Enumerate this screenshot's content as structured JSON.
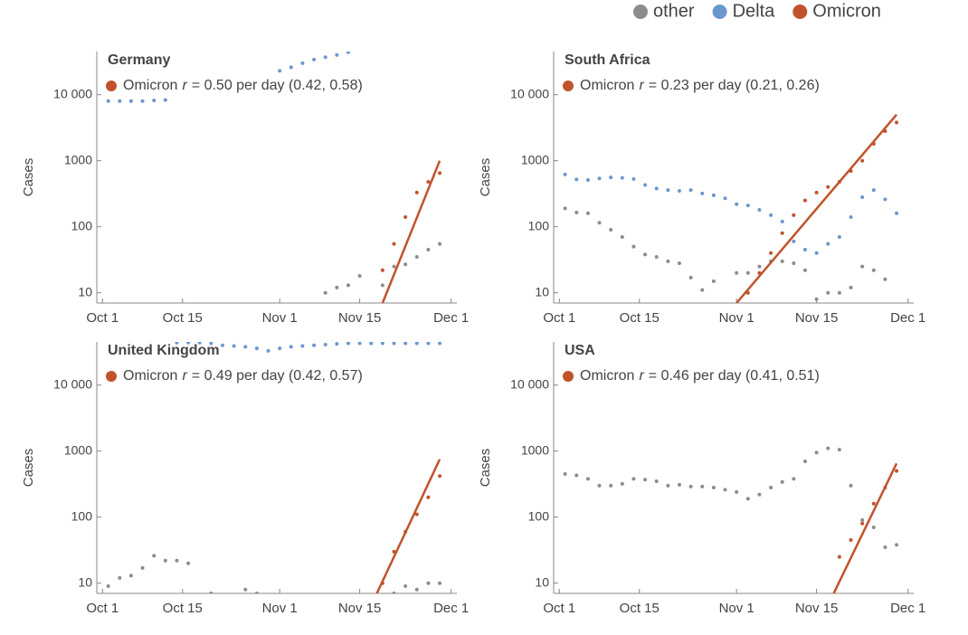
{
  "chart_data": [
    {
      "type": "scatter",
      "title": "Germany",
      "ylabel": "Cases",
      "log_y": true,
      "legend": "top right",
      "annotation": {
        "label": "Omicron",
        "symbol": "r",
        "text": "= 0.50 per day (0.42, 0.58)"
      },
      "x": [
        "Oct 2",
        "Oct 4",
        "Oct 6",
        "Oct 8",
        "Oct 10",
        "Oct 12",
        "Oct 14",
        "Oct 16",
        "Oct 18",
        "Oct 20",
        "Oct 22",
        "Oct 24",
        "Oct 26",
        "Oct 28",
        "Oct 30",
        "Nov 1",
        "Nov 3",
        "Nov 5",
        "Nov 7",
        "Nov 9",
        "Nov 11",
        "Nov 13",
        "Nov 15",
        "Nov 17",
        "Nov 19",
        "Nov 21",
        "Nov 23",
        "Nov 25",
        "Nov 27",
        "Nov 29"
      ],
      "series": [
        {
          "name": "other",
          "color": "#8c8c8c",
          "values": [
            null,
            null,
            null,
            null,
            null,
            null,
            null,
            null,
            null,
            null,
            null,
            null,
            null,
            null,
            null,
            null,
            null,
            null,
            null,
            10,
            12,
            13,
            18,
            null,
            13,
            25,
            27,
            35,
            45,
            55
          ]
        },
        {
          "name": "Delta",
          "color": "#6b97cf",
          "values": [
            8000,
            8000,
            8000,
            8000,
            8200,
            8300,
            null,
            null,
            null,
            null,
            null,
            null,
            null,
            null,
            null,
            23000,
            26000,
            30000,
            34000,
            37000,
            40000,
            44000,
            null,
            null,
            null,
            null,
            null,
            null,
            null,
            null
          ]
        },
        {
          "name": "Omicron",
          "color": "#c0532b",
          "values": [
            null,
            null,
            null,
            null,
            null,
            null,
            null,
            null,
            null,
            null,
            null,
            null,
            null,
            null,
            null,
            null,
            null,
            null,
            null,
            null,
            null,
            null,
            null,
            null,
            22,
            55,
            140,
            330,
            480,
            650
          ]
        }
      ],
      "fit": {
        "x": [
          "Nov 19",
          "Nov 29"
        ],
        "values": [
          7,
          1000
        ]
      },
      "xlim": [
        "Sep 30",
        "Dec 2"
      ],
      "xticks": [
        "Oct 1",
        "Oct 15",
        "Nov 1",
        "Nov 15",
        "Dec 1"
      ],
      "ylim": [
        7,
        45000
      ],
      "yticks": [
        10,
        100,
        1000,
        {
          "value": 10000,
          "label": "10 000"
        }
      ]
    },
    {
      "type": "scatter",
      "title": "South Africa",
      "ylabel": "Cases",
      "log_y": true,
      "annotation": {
        "label": "Omicron",
        "symbol": "r",
        "text": "= 0.23 per day (0.21, 0.26)"
      },
      "x": [
        "Oct 2",
        "Oct 4",
        "Oct 6",
        "Oct 8",
        "Oct 10",
        "Oct 12",
        "Oct 14",
        "Oct 16",
        "Oct 18",
        "Oct 20",
        "Oct 22",
        "Oct 24",
        "Oct 26",
        "Oct 28",
        "Oct 30",
        "Nov 1",
        "Nov 3",
        "Nov 5",
        "Nov 7",
        "Nov 9",
        "Nov 11",
        "Nov 13",
        "Nov 15",
        "Nov 17",
        "Nov 19",
        "Nov 21",
        "Nov 23",
        "Nov 25",
        "Nov 27",
        "Nov 29"
      ],
      "series": [
        {
          "name": "other",
          "color": "#8c8c8c",
          "values": [
            190,
            165,
            160,
            115,
            90,
            70,
            50,
            38,
            35,
            30,
            28,
            17,
            11,
            15,
            null,
            20,
            20,
            25,
            30,
            30,
            28,
            22,
            8,
            10,
            10,
            12,
            25,
            22,
            16,
            null
          ]
        },
        {
          "name": "Delta",
          "color": "#6b97cf",
          "values": [
            620,
            520,
            510,
            540,
            560,
            550,
            530,
            430,
            380,
            360,
            350,
            360,
            320,
            300,
            270,
            220,
            210,
            180,
            150,
            120,
            60,
            45,
            40,
            55,
            70,
            140,
            280,
            360,
            260,
            160
          ]
        },
        {
          "name": "Omicron",
          "color": "#c0532b",
          "values": [
            null,
            null,
            null,
            null,
            null,
            null,
            null,
            null,
            null,
            null,
            null,
            null,
            null,
            null,
            null,
            null,
            10,
            20,
            40,
            80,
            150,
            250,
            330,
            400,
            480,
            700,
            1000,
            1800,
            2800,
            3800
          ]
        }
      ],
      "fit": {
        "x": [
          "Nov 1",
          "Nov 29"
        ],
        "values": [
          7,
          5000
        ]
      },
      "xlim": [
        "Sep 30",
        "Dec 2"
      ],
      "xticks": [
        "Oct 1",
        "Oct 15",
        "Nov 1",
        "Nov 15",
        "Dec 1"
      ],
      "ylim": [
        7,
        45000
      ],
      "yticks": [
        10,
        100,
        1000,
        {
          "value": 10000,
          "label": "10 000"
        }
      ]
    },
    {
      "type": "scatter",
      "title": "United Kingdom",
      "ylabel": "Cases",
      "log_y": true,
      "annotation": {
        "label": "Omicron",
        "symbol": "r",
        "text": "= 0.49 per day (0.42, 0.57)"
      },
      "x": [
        "Oct 2",
        "Oct 4",
        "Oct 6",
        "Oct 8",
        "Oct 10",
        "Oct 12",
        "Oct 14",
        "Oct 16",
        "Oct 18",
        "Oct 20",
        "Oct 22",
        "Oct 24",
        "Oct 26",
        "Oct 28",
        "Oct 30",
        "Nov 1",
        "Nov 3",
        "Nov 5",
        "Nov 7",
        "Nov 9",
        "Nov 11",
        "Nov 13",
        "Nov 15",
        "Nov 17",
        "Nov 19",
        "Nov 21",
        "Nov 23",
        "Nov 25",
        "Nov 27",
        "Nov 29"
      ],
      "series": [
        {
          "name": "other",
          "color": "#8c8c8c",
          "values": [
            9,
            12,
            13,
            17,
            26,
            22,
            22,
            20,
            null,
            7,
            null,
            null,
            8,
            7,
            null,
            null,
            null,
            null,
            null,
            null,
            null,
            null,
            null,
            null,
            null,
            7,
            9,
            8,
            10,
            10
          ]
        },
        {
          "name": "Delta",
          "color": "#6b97cf",
          "values": [
            null,
            null,
            null,
            null,
            null,
            null,
            44000,
            44000,
            44000,
            43000,
            40000,
            39000,
            38000,
            36000,
            33000,
            36000,
            38000,
            39000,
            40000,
            41000,
            42000,
            43000,
            43000,
            43000,
            43000,
            43000,
            43000,
            43000,
            43000,
            43000
          ]
        },
        {
          "name": "Omicron",
          "color": "#c0532b",
          "values": [
            null,
            null,
            null,
            null,
            null,
            null,
            null,
            null,
            null,
            null,
            null,
            null,
            null,
            null,
            null,
            null,
            null,
            null,
            null,
            null,
            null,
            null,
            null,
            null,
            10,
            30,
            60,
            110,
            200,
            420
          ]
        }
      ],
      "fit": {
        "x": [
          "Nov 18",
          "Nov 29"
        ],
        "values": [
          7,
          750
        ]
      },
      "xlim": [
        "Sep 30",
        "Dec 2"
      ],
      "xticks": [
        "Oct 1",
        "Oct 15",
        "Nov 1",
        "Nov 15",
        "Dec 1"
      ],
      "ylim": [
        7,
        45000
      ],
      "yticks": [
        10,
        100,
        1000,
        {
          "value": 10000,
          "label": "10 000"
        }
      ]
    },
    {
      "type": "scatter",
      "title": "USA",
      "ylabel": "Cases",
      "log_y": true,
      "annotation": {
        "label": "Omicron",
        "symbol": "r",
        "text": "= 0.46 per day (0.41, 0.51)"
      },
      "x": [
        "Oct 2",
        "Oct 4",
        "Oct 6",
        "Oct 8",
        "Oct 10",
        "Oct 12",
        "Oct 14",
        "Oct 16",
        "Oct 18",
        "Oct 20",
        "Oct 22",
        "Oct 24",
        "Oct 26",
        "Oct 28",
        "Oct 30",
        "Nov 1",
        "Nov 3",
        "Nov 5",
        "Nov 7",
        "Nov 9",
        "Nov 11",
        "Nov 13",
        "Nov 15",
        "Nov 17",
        "Nov 19",
        "Nov 21",
        "Nov 23",
        "Nov 25",
        "Nov 27",
        "Nov 29"
      ],
      "series": [
        {
          "name": "other",
          "color": "#8c8c8c",
          "values": [
            450,
            430,
            380,
            300,
            300,
            320,
            380,
            370,
            350,
            300,
            310,
            290,
            290,
            280,
            260,
            240,
            190,
            220,
            280,
            340,
            380,
            700,
            950,
            1100,
            1050,
            300,
            90,
            70,
            35,
            38
          ]
        },
        {
          "name": "Omicron",
          "color": "#c0532b",
          "values": [
            null,
            null,
            null,
            null,
            null,
            null,
            null,
            null,
            null,
            null,
            null,
            null,
            null,
            null,
            null,
            null,
            null,
            null,
            null,
            null,
            null,
            null,
            null,
            null,
            25,
            45,
            80,
            160,
            280,
            500
          ]
        }
      ],
      "fit": {
        "x": [
          "Nov 18",
          "Nov 29"
        ],
        "values": [
          7,
          650
        ]
      },
      "xlim": [
        "Sep 30",
        "Dec 2"
      ],
      "xticks": [
        "Oct 1",
        "Oct 15",
        "Nov 1",
        "Nov 15",
        "Dec 1"
      ],
      "ylim": [
        7,
        45000
      ],
      "yticks": [
        10,
        100,
        1000,
        {
          "value": 10000,
          "label": "10 000"
        }
      ]
    }
  ]
}
